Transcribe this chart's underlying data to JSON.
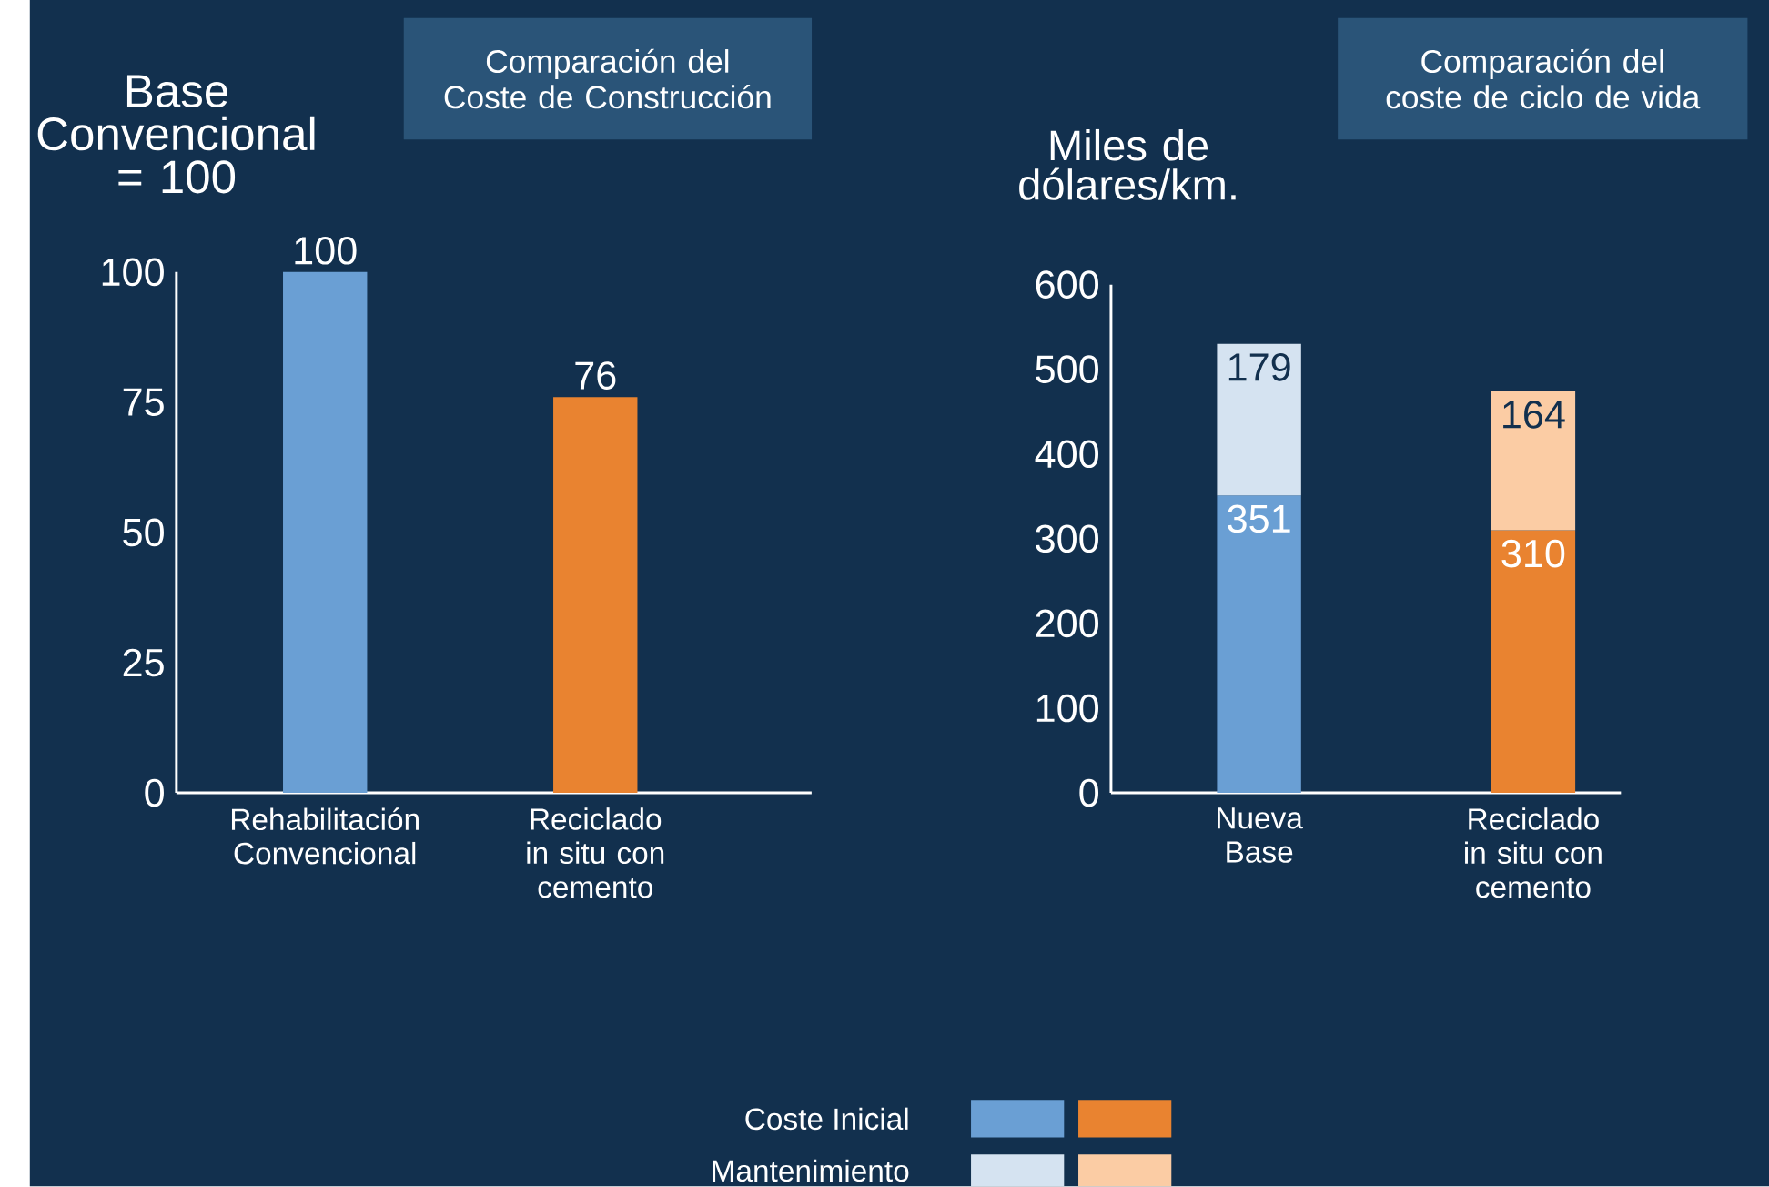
{
  "chart_data": [
    {
      "type": "bar",
      "title": "Comparación del Coste de Construcción",
      "ylabel": "Base Convencional = 100",
      "categories": [
        "Rehabilitación Convencional",
        "Reciclado in situ con cemento"
      ],
      "values": [
        100,
        76
      ],
      "colors": [
        "#6a9fd4",
        "#e98330"
      ],
      "ylim": [
        0,
        100
      ],
      "yticks": [
        0,
        25,
        50,
        75,
        100
      ],
      "data_labels": true
    },
    {
      "type": "bar",
      "stacked": true,
      "title": "Comparación del coste de ciclo de vida",
      "ylabel": "Miles de dólares/km.",
      "categories": [
        "Nueva Base",
        "Reciclado in situ con cemento"
      ],
      "series": [
        {
          "name": "Coste Inicial",
          "colors": [
            "#6a9fd4",
            "#e98330"
          ],
          "values": [
            351,
            310
          ]
        },
        {
          "name": "Mantenimiento",
          "colors": [
            "#d5e3f1",
            "#fbcca4"
          ],
          "values": [
            179,
            164
          ]
        }
      ],
      "ylim": [
        0,
        600
      ],
      "yticks": [
        0,
        100,
        200,
        300,
        400,
        500,
        600
      ],
      "data_labels": true,
      "legend": "bottom"
    }
  ]
}
